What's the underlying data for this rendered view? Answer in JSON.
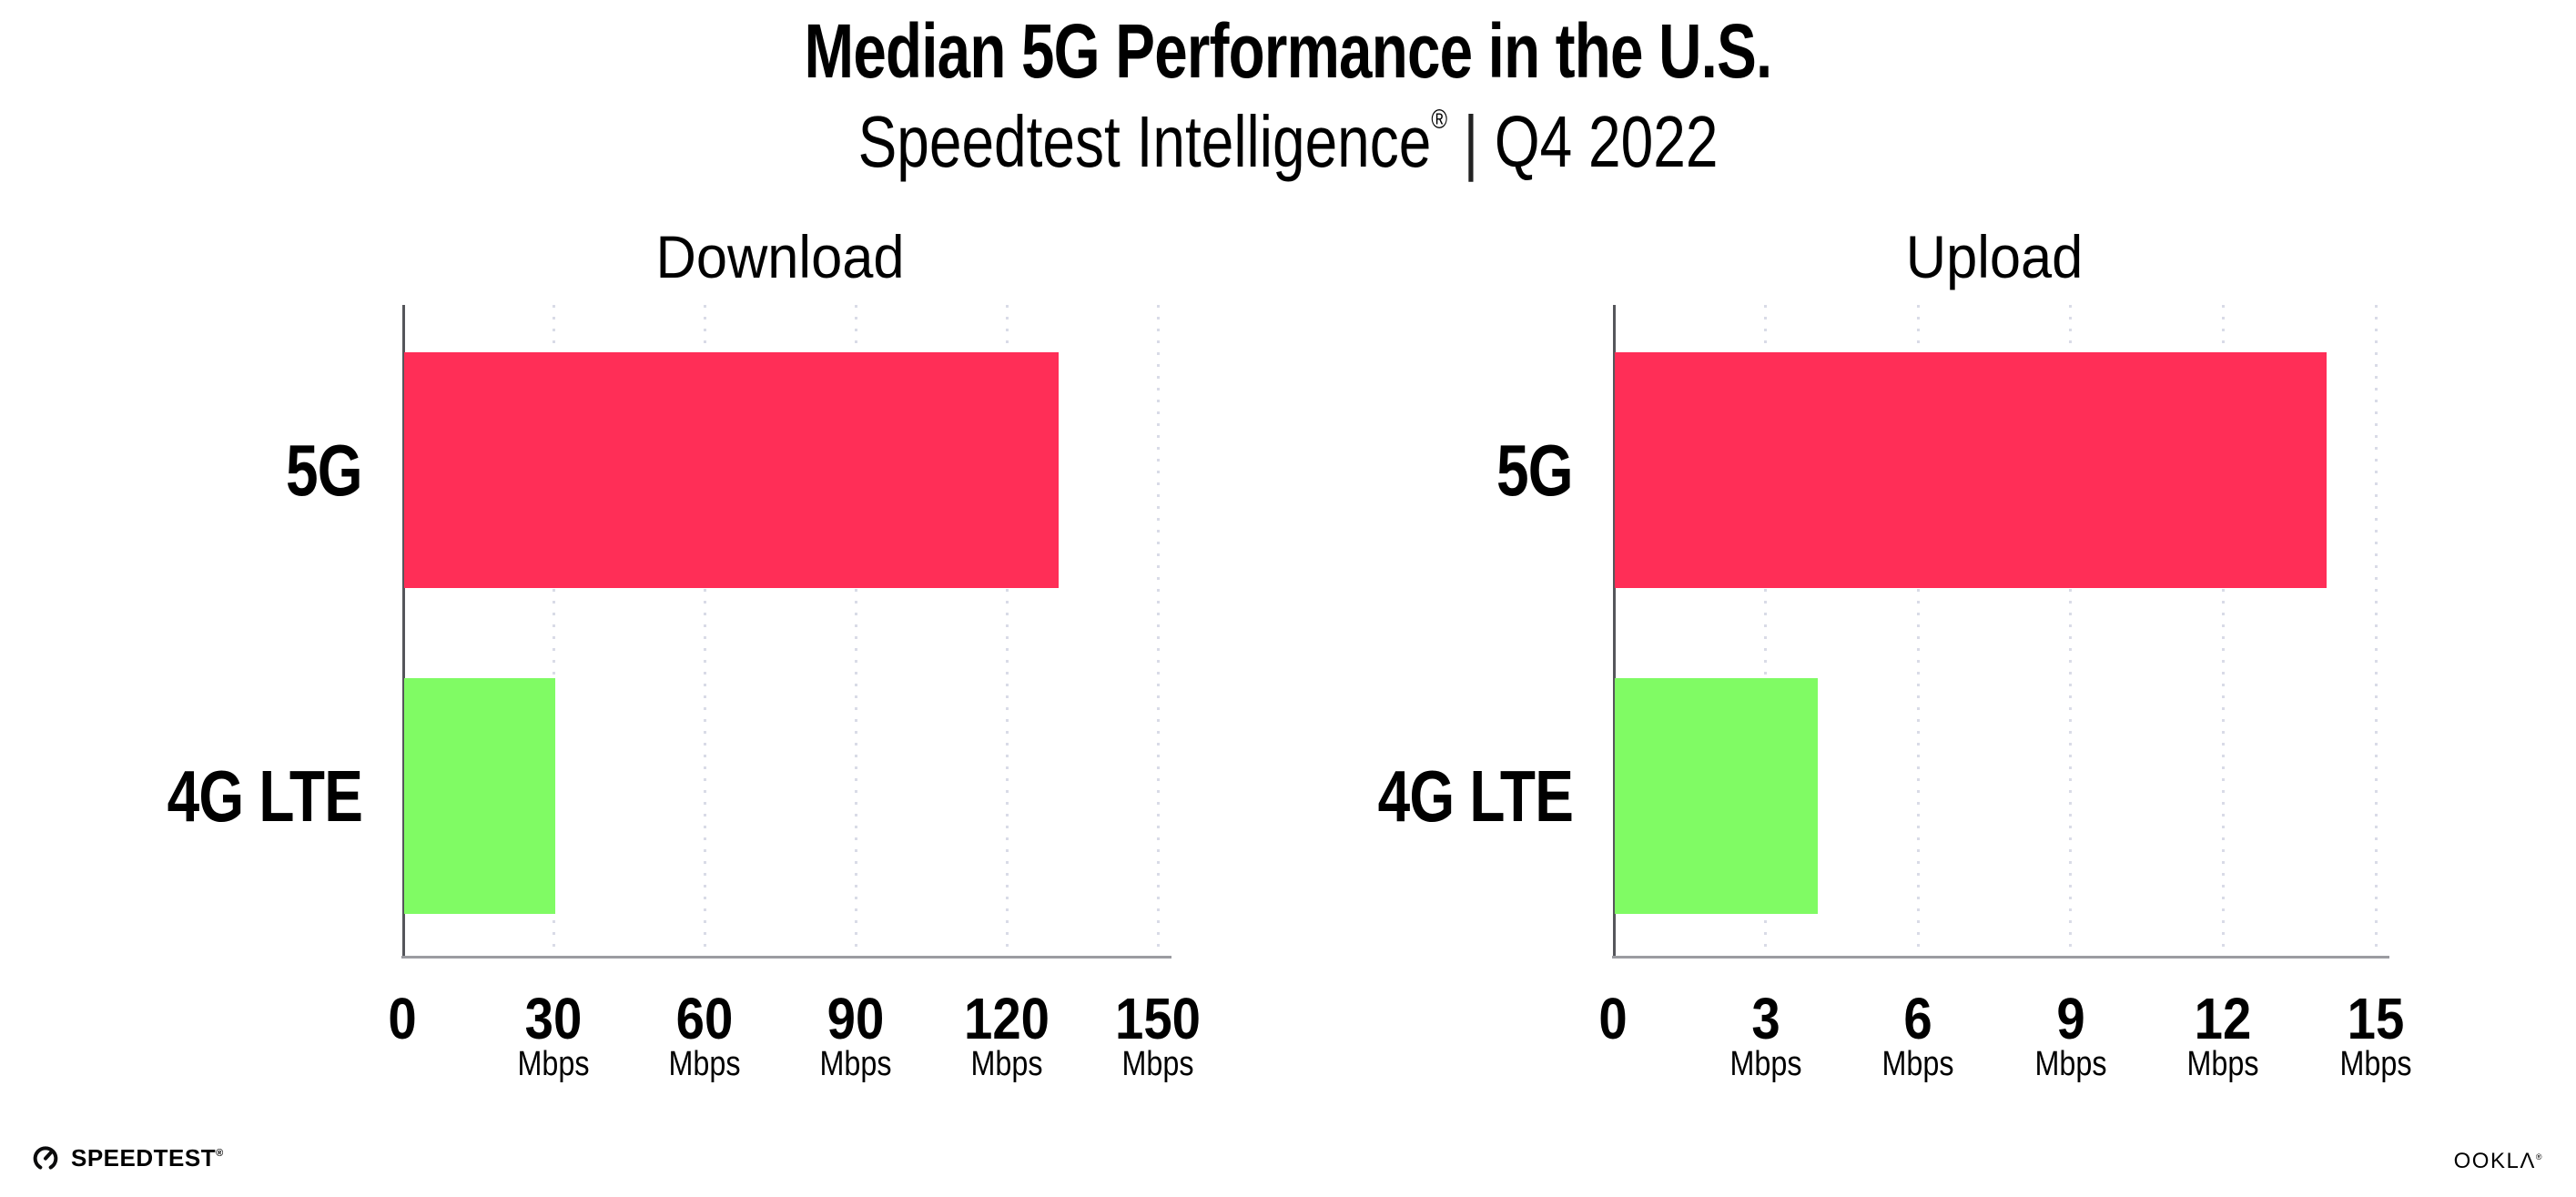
{
  "header": {
    "title": "Median 5G Performance in the U.S.",
    "subtitle": {
      "brand": "Speedtest Intelligence",
      "registered_mark": "®",
      "separator": "|",
      "period": "Q4 2022"
    }
  },
  "chart_data": [
    {
      "type": "bar",
      "orientation": "horizontal",
      "title": "Download",
      "categories": [
        "5G",
        "4G LTE"
      ],
      "values": [
        130,
        30
      ],
      "unit": "Mbps",
      "xlim": [
        0,
        150
      ],
      "xticks": [
        0,
        30,
        60,
        90,
        120,
        150
      ],
      "xtick_unit_label": "Mbps",
      "bar_colors": [
        "#ff2e57",
        "#80fb64"
      ],
      "grid": "dotted vertical lines at ticks",
      "legend": "none"
    },
    {
      "type": "bar",
      "orientation": "horizontal",
      "title": "Upload",
      "categories": [
        "5G",
        "4G LTE"
      ],
      "values": [
        14,
        4
      ],
      "unit": "Mbps",
      "xlim": [
        0,
        15
      ],
      "xticks": [
        0,
        3,
        6,
        9,
        12,
        15
      ],
      "xtick_unit_label": "Mbps",
      "bar_colors": [
        "#ff2e57",
        "#80fb64"
      ],
      "grid": "dotted vertical lines at ticks",
      "legend": "none"
    }
  ],
  "footer": {
    "speedtest_label": "SPEEDTEST",
    "speedtest_mark": "®",
    "ookla_label": "OOKLΛ",
    "ookla_mark": "®"
  },
  "colors": {
    "bar_5g": "#ff2e57",
    "bar_4g_lte": "#80fb64",
    "axis": "#55565b",
    "baseline": "#9b9ca1",
    "gridline": "#d9dbe7",
    "text": "#000000",
    "background": "#ffffff"
  }
}
